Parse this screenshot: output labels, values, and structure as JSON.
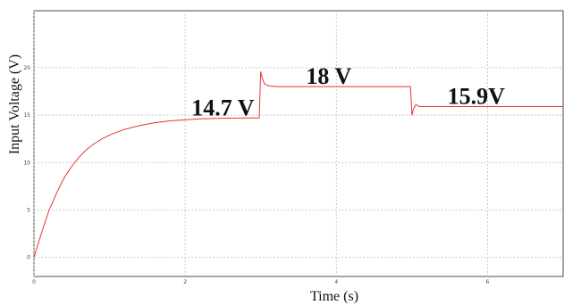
{
  "chart_data": {
    "type": "line",
    "xlabel": "Time (s)",
    "ylabel": "Input Voltage (V)",
    "xlim": [
      0,
      7
    ],
    "ylim": [
      -2,
      26
    ],
    "x_ticks": [
      0,
      2,
      4,
      6
    ],
    "y_ticks": [
      0,
      5,
      10,
      15,
      20
    ],
    "grid": true,
    "series": [
      {
        "color": "#e8342f",
        "x": [
          0,
          0.1,
          0.2,
          0.3,
          0.4,
          0.5,
          0.6,
          0.7,
          0.8,
          0.9,
          1.0,
          1.2,
          1.4,
          1.6,
          1.8,
          2.0,
          2.2,
          2.4,
          2.6,
          2.8,
          2.98,
          3.0,
          3.02,
          3.05,
          3.1,
          3.2,
          3.5,
          4.0,
          4.5,
          4.98,
          5.0,
          5.02,
          5.05,
          5.1,
          5.2,
          5.5,
          6.0,
          6.5,
          7.0
        ],
        "y": [
          0,
          2.6,
          5.0,
          6.8,
          8.4,
          9.6,
          10.6,
          11.4,
          12.0,
          12.5,
          12.9,
          13.5,
          13.9,
          14.2,
          14.4,
          14.5,
          14.6,
          14.65,
          14.68,
          14.7,
          14.7,
          19.6,
          18.9,
          18.3,
          18.1,
          18.0,
          18.0,
          18.0,
          18.0,
          18.0,
          15.0,
          15.6,
          16.1,
          15.9,
          15.9,
          15.9,
          15.9,
          15.9,
          15.9
        ]
      }
    ],
    "annotations": [
      {
        "text": "14.7 V",
        "x": 2.5,
        "y": 14.7
      },
      {
        "text": "18 V",
        "x": 3.9,
        "y": 18.0
      },
      {
        "text": "15.9V",
        "x": 5.85,
        "y": 15.9
      }
    ]
  }
}
